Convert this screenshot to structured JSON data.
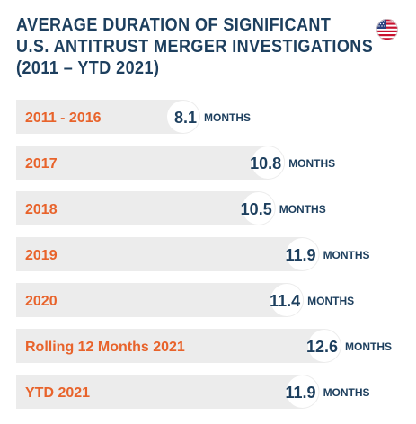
{
  "title_lines": [
    "AVERAGE DURATION OF SIGNIFICANT",
    "U.S. ANTITRUST MERGER INVESTIGATIONS",
    "(2011 – YTD 2021)"
  ],
  "flag_icon": "us-flag-icon",
  "colors": {
    "title": "#1d3f5e",
    "category": "#e8632b",
    "value": "#1d3f5e",
    "bar": "#ececec",
    "value_circle": "#ffffff"
  },
  "chart_data": {
    "type": "bar",
    "orientation": "horizontal",
    "title": "AVERAGE DURATION OF SIGNIFICANT U.S. ANTITRUST MERGER INVESTIGATIONS (2011 – YTD 2021)",
    "categories": [
      "2011 - 2016",
      "2017",
      "2018",
      "2019",
      "2020",
      "Rolling 12 Months 2021",
      "YTD 2021"
    ],
    "values": [
      8.1,
      10.8,
      10.5,
      11.9,
      11.4,
      12.6,
      11.9
    ],
    "value_labels": [
      "8.1",
      "10.8",
      "10.5",
      "11.9",
      "11.4",
      "12.6",
      "11.9"
    ],
    "unit": "MONTHS",
    "xlim": [
      0,
      12.6
    ],
    "grid": false,
    "legend": "none"
  }
}
